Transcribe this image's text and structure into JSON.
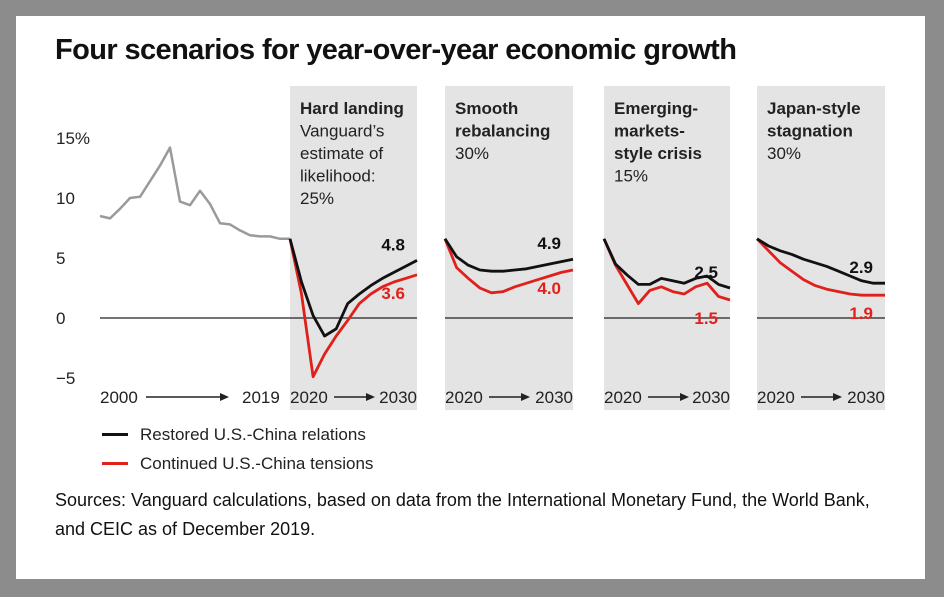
{
  "title": "Four scenarios for year-over-year economic growth",
  "legend": {
    "restored": "Restored U.S.-China relations",
    "tensions": "Continued U.S.-China tensions"
  },
  "source": "Sources: Vanguard calculations, based on data from the International Monetary Fund, the World Bank, and CEIC as of December 2019.",
  "colors": {
    "restored": "#111111",
    "tensions": "#e0201b",
    "history": "#9a9a9a",
    "panel_bg": "#e4e4e4"
  },
  "chart_data": {
    "type": "line",
    "y_tick_labels": [
      "15%",
      "10",
      "5",
      "0",
      "−5"
    ],
    "ylim": [
      -5,
      15
    ],
    "grid": false,
    "legend_position": "bottom-left",
    "history": {
      "x_labels": [
        "2000",
        "2019"
      ],
      "x": [
        2000,
        2001,
        2002,
        2003,
        2004,
        2005,
        2006,
        2007,
        2008,
        2009,
        2010,
        2011,
        2012,
        2013,
        2014,
        2015,
        2016,
        2017,
        2018,
        2019
      ],
      "values": [
        8.5,
        8.3,
        9.1,
        10.0,
        10.1,
        11.4,
        12.7,
        14.2,
        9.7,
        9.4,
        10.6,
        9.5,
        7.9,
        7.8,
        7.3,
        6.9,
        6.8,
        6.8,
        6.6,
        6.6
      ]
    },
    "scenarios": [
      {
        "title": [
          "Hard landing"
        ],
        "note": [
          "Vanguard’s",
          "estimate of",
          "likelihood:",
          "25%"
        ],
        "x_labels": [
          "2020",
          "2030"
        ],
        "x": [
          2019,
          2020,
          2021,
          2022,
          2023,
          2024,
          2025,
          2026,
          2027,
          2028,
          2029,
          2030
        ],
        "restored": [
          6.6,
          3.0,
          0.2,
          -1.5,
          -0.9,
          1.2,
          2.0,
          2.7,
          3.3,
          3.8,
          4.3,
          4.8
        ],
        "tensions": [
          6.6,
          2.0,
          -4.9,
          -3.0,
          -1.5,
          -0.2,
          1.2,
          2.0,
          2.6,
          3.0,
          3.3,
          3.6
        ],
        "end_labels": {
          "restored": "4.8",
          "tensions": "3.6"
        }
      },
      {
        "title": [
          "Smooth",
          "rebalancing"
        ],
        "note": [
          "30%"
        ],
        "x_labels": [
          "2020",
          "2030"
        ],
        "x": [
          2019,
          2020,
          2021,
          2022,
          2023,
          2024,
          2025,
          2026,
          2027,
          2028,
          2029,
          2030
        ],
        "restored": [
          6.6,
          5.1,
          4.4,
          4.0,
          3.9,
          3.9,
          4.0,
          4.1,
          4.3,
          4.5,
          4.7,
          4.9
        ],
        "tensions": [
          6.6,
          4.2,
          3.3,
          2.5,
          2.1,
          2.2,
          2.6,
          2.9,
          3.2,
          3.5,
          3.8,
          4.0
        ],
        "end_labels": {
          "restored": "4.9",
          "tensions": "4.0"
        }
      },
      {
        "title": [
          "Emerging-",
          "markets-",
          "style crisis"
        ],
        "note": [
          "15%"
        ],
        "x_labels": [
          "2020",
          "2030"
        ],
        "x": [
          2019,
          2020,
          2021,
          2022,
          2023,
          2024,
          2025,
          2026,
          2027,
          2028,
          2029,
          2030
        ],
        "restored": [
          6.6,
          4.5,
          3.6,
          2.8,
          2.8,
          3.3,
          3.1,
          2.9,
          3.3,
          3.5,
          2.8,
          2.5
        ],
        "tensions": [
          6.6,
          4.4,
          2.8,
          1.2,
          2.3,
          2.6,
          2.2,
          2.0,
          2.6,
          2.9,
          1.8,
          1.5
        ],
        "end_labels": {
          "restored": "2.5",
          "tensions": "1.5"
        }
      },
      {
        "title": [
          "Japan-style",
          "stagnation"
        ],
        "note": [
          "30%"
        ],
        "x_labels": [
          "2020",
          "2030"
        ],
        "x": [
          2019,
          2020,
          2021,
          2022,
          2023,
          2024,
          2025,
          2026,
          2027,
          2028,
          2029,
          2030
        ],
        "restored": [
          6.6,
          6.0,
          5.6,
          5.3,
          4.9,
          4.6,
          4.3,
          3.9,
          3.5,
          3.1,
          2.9,
          2.9
        ],
        "tensions": [
          6.6,
          5.6,
          4.6,
          3.9,
          3.2,
          2.7,
          2.4,
          2.2,
          2.0,
          1.9,
          1.9,
          1.9
        ],
        "end_labels": {
          "restored": "2.9",
          "tensions": "1.9"
        }
      }
    ]
  }
}
